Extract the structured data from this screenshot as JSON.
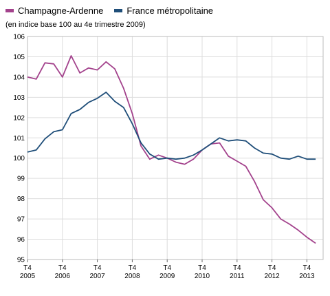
{
  "legend": [
    {
      "name": "Champagne-Ardenne",
      "color": "#a3428c"
    },
    {
      "name": "France métropolitaine",
      "color": "#1f4e79"
    }
  ],
  "subtitle": "(en indice base 100 au 4e trimestre 2009)",
  "chart_data": {
    "type": "line",
    "title": "",
    "xlabel": "",
    "ylabel": "",
    "ylim": [
      95,
      106
    ],
    "yticks": [
      95,
      96,
      97,
      98,
      99,
      100,
      101,
      102,
      103,
      104,
      105,
      106
    ],
    "grid": true,
    "legend_position": "top-left",
    "x_tick_labels": [
      {
        "l1": "T4",
        "l2": "2005"
      },
      {
        "l1": "T4",
        "l2": "2006"
      },
      {
        "l1": "T4",
        "l2": "2007"
      },
      {
        "l1": "T4",
        "l2": "2008"
      },
      {
        "l1": "T4",
        "l2": "2009"
      },
      {
        "l1": "T4",
        "l2": "2010"
      },
      {
        "l1": "T4",
        "l2": "2011"
      },
      {
        "l1": "T4",
        "l2": "2012"
      },
      {
        "l1": "T4",
        "l2": "2013"
      }
    ],
    "x": [
      "2005-T4",
      "2006-T1",
      "2006-T2",
      "2006-T3",
      "2006-T4",
      "2007-T1",
      "2007-T2",
      "2007-T3",
      "2007-T4",
      "2008-T1",
      "2008-T2",
      "2008-T3",
      "2008-T4",
      "2009-T1",
      "2009-T2",
      "2009-T3",
      "2009-T4",
      "2010-T1",
      "2010-T2",
      "2010-T3",
      "2010-T4",
      "2011-T1",
      "2011-T2",
      "2011-T3",
      "2011-T4",
      "2012-T1",
      "2012-T2",
      "2012-T3",
      "2012-T4",
      "2013-T1",
      "2013-T2",
      "2013-T3",
      "2013-T4",
      "2014-T1"
    ],
    "series": [
      {
        "name": "Champagne-Ardenne",
        "color": "#a3428c",
        "values": [
          104.0,
          103.9,
          104.7,
          104.65,
          104.0,
          105.05,
          104.2,
          104.45,
          104.35,
          104.75,
          104.4,
          103.45,
          102.2,
          100.6,
          99.95,
          100.15,
          100.0,
          99.8,
          99.7,
          99.95,
          100.4,
          100.7,
          100.75,
          100.1,
          99.85,
          99.6,
          98.85,
          97.95,
          97.55,
          97.0,
          96.75,
          96.45,
          96.1,
          95.8
        ]
      },
      {
        "name": "France métropolitaine",
        "color": "#1f4e79",
        "values": [
          100.3,
          100.4,
          100.95,
          101.3,
          101.4,
          102.2,
          102.4,
          102.75,
          102.95,
          103.25,
          102.8,
          102.5,
          101.7,
          100.75,
          100.2,
          99.95,
          100.0,
          99.95,
          100.0,
          100.15,
          100.4,
          100.7,
          101.0,
          100.85,
          100.9,
          100.85,
          100.5,
          100.25,
          100.2,
          100.0,
          99.95,
          100.1,
          99.95,
          99.95
        ]
      }
    ]
  }
}
